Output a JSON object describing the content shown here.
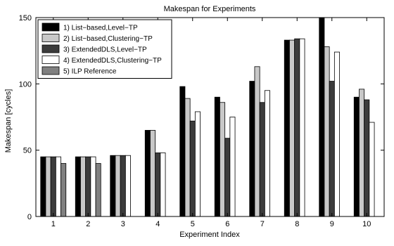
{
  "chart_data": {
    "type": "bar",
    "title": "Makespan for Experiments",
    "xlabel": "Experiment Index",
    "ylabel": "Makespan [cycles]",
    "categories": [
      "1",
      "2",
      "3",
      "4",
      "5",
      "6",
      "7",
      "8",
      "9",
      "10"
    ],
    "ylim": [
      0,
      150
    ],
    "yticks": [
      0,
      50,
      100,
      150
    ],
    "grid": false,
    "legend_position": "top-left",
    "series": [
      {
        "name": "1) List−based,Level−TP",
        "color": "#000000",
        "values": [
          45,
          45,
          46,
          65,
          98,
          90,
          102,
          133,
          150,
          90
        ]
      },
      {
        "name": "2) List−based,Clustering−TP",
        "color": "#c8c8c8",
        "values": [
          45,
          45,
          46,
          65,
          89,
          86,
          113,
          133,
          128,
          96
        ]
      },
      {
        "name": "3) ExtendedDLS,Level−TP",
        "color": "#3c3c3c",
        "values": [
          45,
          45,
          46,
          48,
          72,
          59,
          86,
          134,
          102,
          88
        ]
      },
      {
        "name": "4) ExtendedDLS,Clustering−TP",
        "color": "#ffffff",
        "values": [
          45,
          45,
          46,
          48,
          79,
          75,
          95,
          134,
          124,
          71
        ]
      },
      {
        "name": "5) ILP Reference",
        "color": "#808080",
        "values": [
          40,
          40,
          null,
          null,
          null,
          null,
          null,
          null,
          null,
          null
        ]
      }
    ]
  }
}
